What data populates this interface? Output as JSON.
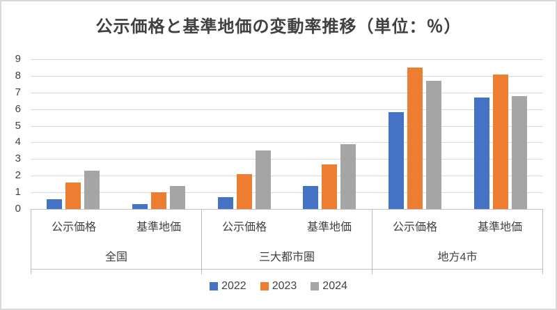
{
  "chart_data": {
    "type": "bar",
    "title": "公示価格と基準地価の変動率推移（単位：％）",
    "ylim": [
      0,
      9
    ],
    "yticks": [
      0,
      1,
      2,
      3,
      4,
      5,
      6,
      7,
      8,
      9
    ],
    "grid": true,
    "legend_position": "bottom",
    "gridline_color": "#d9d9d9",
    "axis_border_color": "#bfbfbf",
    "series": [
      {
        "name": "2022",
        "color": "#4472C4"
      },
      {
        "name": "2023",
        "color": "#ED7D31"
      },
      {
        "name": "2024",
        "color": "#A5A5A5"
      }
    ],
    "groups": [
      {
        "label": "全国",
        "subgroups": [
          {
            "label": "公示価格",
            "values": [
              0.6,
              1.6,
              2.3
            ]
          },
          {
            "label": "基準地価",
            "values": [
              0.3,
              1.0,
              1.4
            ]
          }
        ]
      },
      {
        "label": "三大都市圏",
        "subgroups": [
          {
            "label": "公示価格",
            "values": [
              0.7,
              2.1,
              3.5
            ]
          },
          {
            "label": "基準地価",
            "values": [
              1.4,
              2.7,
              3.9
            ]
          }
        ]
      },
      {
        "label": "地方4市",
        "subgroups": [
          {
            "label": "公示価格",
            "values": [
              5.8,
              8.5,
              7.7
            ]
          },
          {
            "label": "基準地価",
            "values": [
              6.7,
              8.1,
              6.8
            ]
          }
        ]
      }
    ]
  }
}
